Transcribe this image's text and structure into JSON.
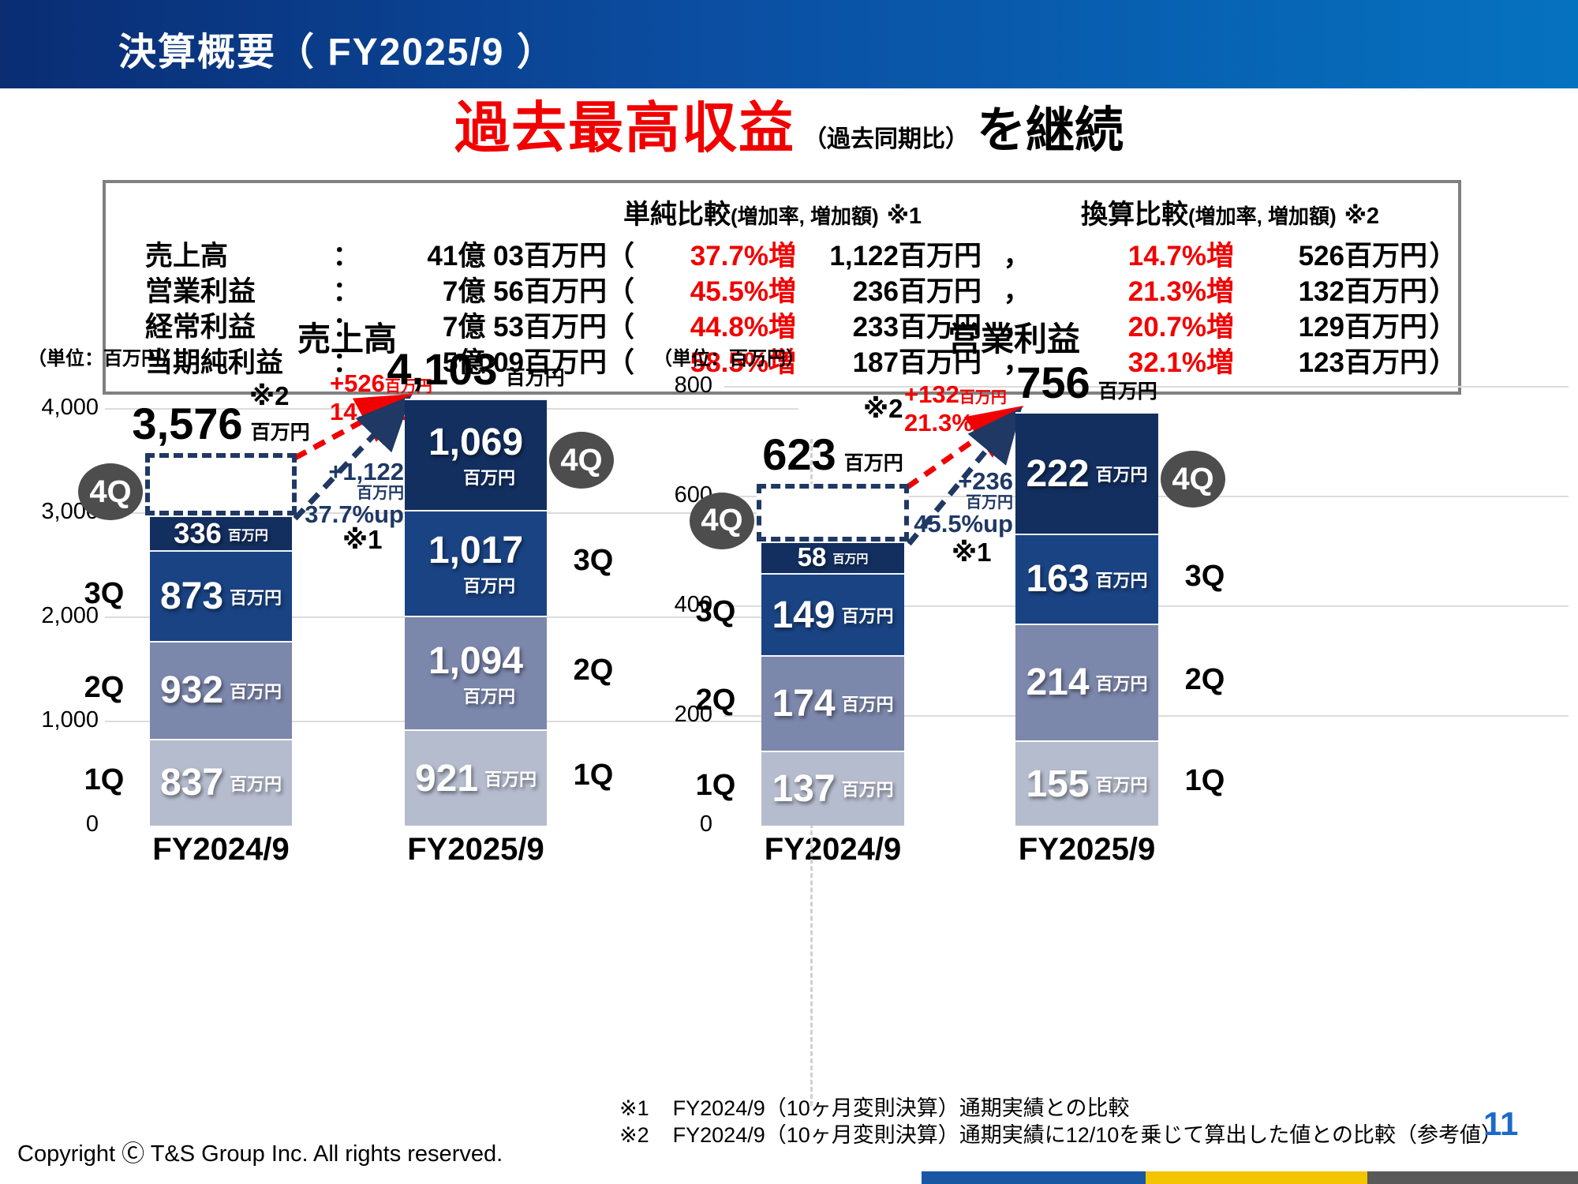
{
  "header": {
    "title": "決算概要（ FY2025/9 ）"
  },
  "headline": {
    "main": "過去最高収益",
    "note": "（過去同期比）",
    "suffix": "を継続"
  },
  "summary_table": {
    "col1_header": {
      "main": "単純比較",
      "sub": "(増加率, 増加額)",
      "ref": "※1"
    },
    "col2_header": {
      "main": "換算比較",
      "sub": "(増加率, 増加額)",
      "ref": "※2"
    },
    "colon": "：",
    "open_paren": "（",
    "close_paren": "）",
    "comma": "，",
    "rows": [
      {
        "label": "売上高",
        "amount": "41億 03百万円",
        "simple_pct": "37.7%増",
        "simple_amount": "1,122百万円",
        "converted_pct": "14.7%増",
        "converted_amount": "526百万円"
      },
      {
        "label": "営業利益",
        "amount": "7億 56百万円",
        "simple_pct": "45.5%増",
        "simple_amount": "236百万円",
        "converted_pct": "21.3%増",
        "converted_amount": "132百万円"
      },
      {
        "label": "経常利益",
        "amount": "7億 53百万円",
        "simple_pct": "44.8%増",
        "simple_amount": "233百万円",
        "converted_pct": "20.7%増",
        "converted_amount": "129百万円"
      },
      {
        "label": "当期純利益",
        "amount": "5億 09百万円",
        "simple_pct": "58.5%増",
        "simple_amount": "187百万円",
        "converted_pct": "32.1%増",
        "converted_amount": "123百万円"
      }
    ]
  },
  "chart_data": [
    {
      "type": "bar",
      "stacked": true,
      "title": "売上高",
      "unit_label": "（単位：百万円）",
      "value_unit": "百万円",
      "categories": [
        "FY2024/9",
        "FY2025/9"
      ],
      "series": [
        {
          "name": "1Q",
          "values": [
            837,
            921
          ],
          "color": "#b5bcce"
        },
        {
          "name": "2Q",
          "values": [
            932,
            1094
          ],
          "color": "#7c87ac"
        },
        {
          "name": "3Q",
          "values": [
            873,
            1017
          ],
          "color": "#1a4383"
        },
        {
          "name": "4Q",
          "values": [
            336,
            1069
          ],
          "color": "#132f60"
        }
      ],
      "projection": {
        "category_index": 0,
        "total": 3576,
        "label": "3,576"
      },
      "totals": [
        {
          "category_index": 0,
          "label": "3,576",
          "unit": "百万円"
        },
        {
          "category_index": 1,
          "label": "4,103",
          "unit": "百万円"
        }
      ],
      "ylim": [
        0,
        4000
      ],
      "grid": true,
      "legend_position": "none",
      "yticks": [
        {
          "value": 0,
          "label": "0"
        },
        {
          "value": 1000,
          "label": "1,000"
        },
        {
          "value": 2000,
          "label": "2,000"
        },
        {
          "value": 3000,
          "label": "3,000"
        },
        {
          "value": 4000,
          "label": "4,000"
        }
      ],
      "annotations": {
        "ref2": "※2",
        "converted_delta": "+526",
        "converted_delta_unit": "百万円",
        "converted_pct": "14.7%up",
        "simple_delta": "+1,122",
        "simple_delta_unit": "百万円",
        "simple_pct": "37.7%up",
        "ref1": "※1"
      }
    },
    {
      "type": "bar",
      "stacked": true,
      "title": "営業利益",
      "unit_label": "（単位：百万円）",
      "value_unit": "百万円",
      "categories": [
        "FY2024/9",
        "FY2025/9"
      ],
      "series": [
        {
          "name": "1Q",
          "values": [
            137,
            155
          ],
          "color": "#b5bcce"
        },
        {
          "name": "2Q",
          "values": [
            174,
            214
          ],
          "color": "#7c87ac"
        },
        {
          "name": "3Q",
          "values": [
            149,
            163
          ],
          "color": "#1a4383"
        },
        {
          "name": "4Q",
          "values": [
            58,
            222
          ],
          "color": "#132f60"
        }
      ],
      "projection": {
        "category_index": 0,
        "total": 623,
        "label": "623"
      },
      "totals": [
        {
          "category_index": 0,
          "label": "623",
          "unit": "百万円"
        },
        {
          "category_index": 1,
          "label": "756",
          "unit": "百万円"
        }
      ],
      "ylim": [
        0,
        800
      ],
      "grid": true,
      "legend_position": "none",
      "yticks": [
        {
          "value": 0,
          "label": "0"
        },
        {
          "value": 200,
          "label": "200"
        },
        {
          "value": 400,
          "label": "400"
        },
        {
          "value": 600,
          "label": "600"
        },
        {
          "value": 800,
          "label": "800"
        }
      ],
      "annotations": {
        "ref2": "※2",
        "converted_delta": "+132",
        "converted_delta_unit": "百万円",
        "converted_pct": "21.3%up",
        "simple_delta": "+236",
        "simple_delta_unit": "百万円",
        "simple_pct": "45.5%up",
        "ref1": "※1"
      }
    }
  ],
  "footnotes": [
    {
      "marker": "※1",
      "text": "FY2024/9（10ヶ月変則決算）通期実績との比較"
    },
    {
      "marker": "※2",
      "text": "FY2024/9（10ヶ月変則決算）通期実績に12/10を乗じて算出した値との比較（参考値）"
    }
  ],
  "footer": {
    "copyright": "Copyright Ⓒ T&S Group Inc. All rights reserved.",
    "page_number": "11"
  },
  "colors": {
    "accent_red": "#f20000",
    "navy": "#1f3864",
    "q1": "#b5bcce",
    "q2": "#7c87ac",
    "q3": "#1a4383",
    "q4": "#132f60",
    "circle_gray": "#4d4d4d",
    "grid": "#dcdcdc",
    "titlebar_left": "#0a2d74",
    "titlebar_right": "#0572c0",
    "page_number_blue": "#1b6ac9",
    "strip_blue": "#1857a4",
    "strip_yellow": "#f2c500",
    "strip_gray": "#595959",
    "table_border": "#808080"
  }
}
